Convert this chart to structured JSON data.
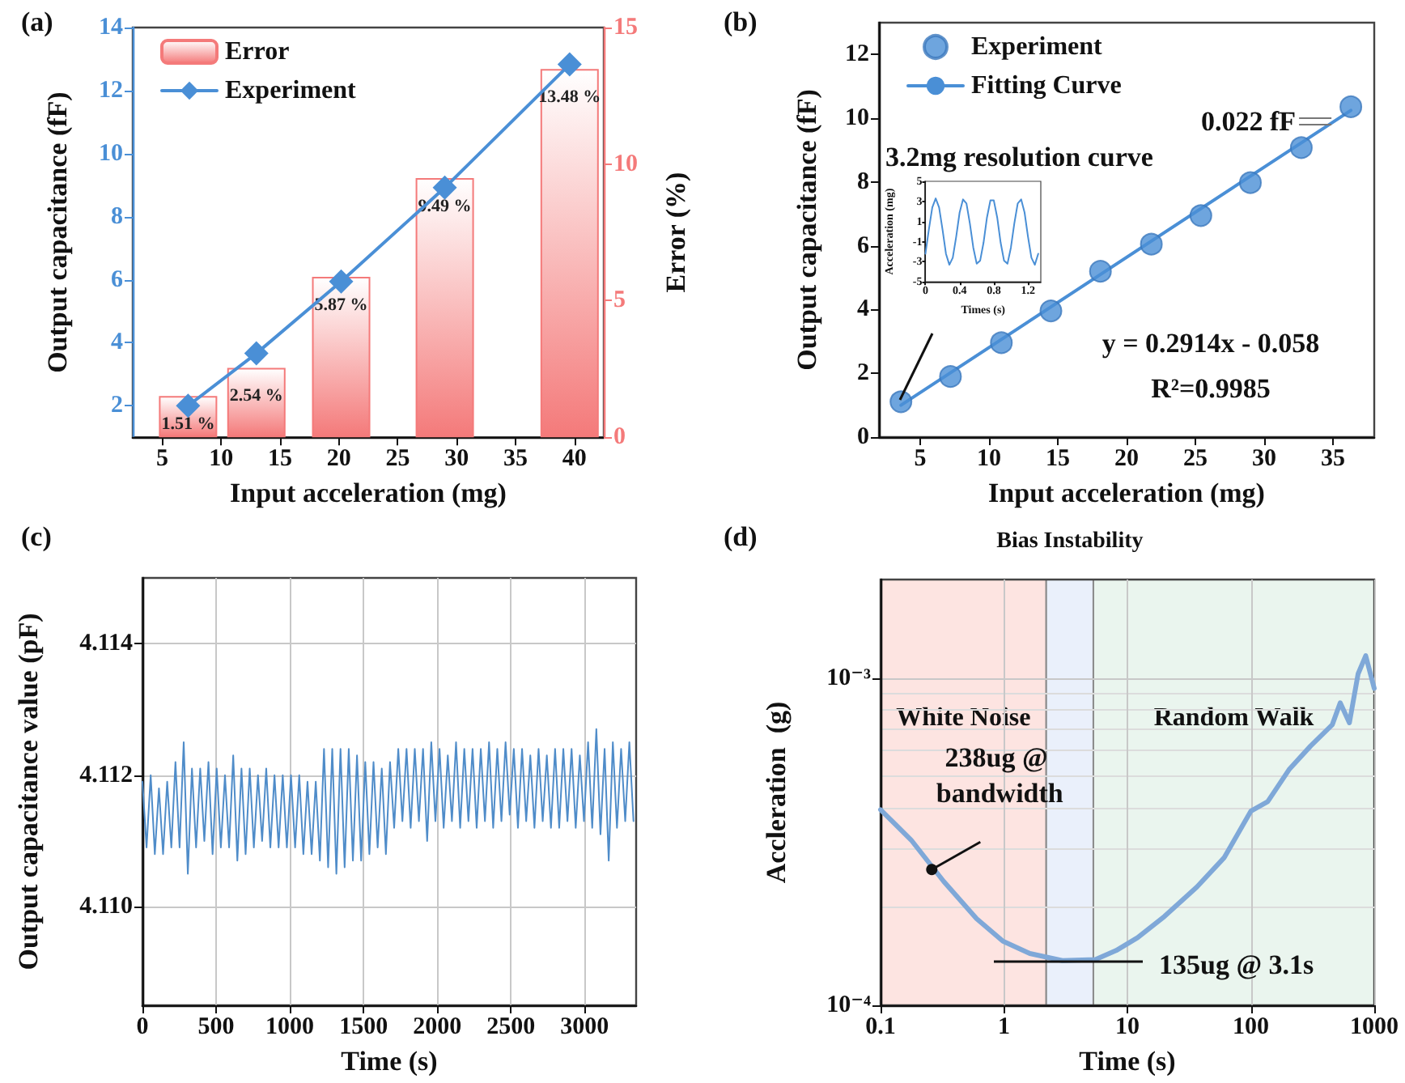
{
  "chart_data": [
    {
      "type": "bar",
      "title": "(a)",
      "xlabel": "Input acceleration (mg)",
      "ylabel": "Output capacitance (fF)",
      "y2label": "Error (%)",
      "xlim": [
        2.5,
        42.5
      ],
      "xticks": [
        5,
        10,
        15,
        20,
        25,
        30,
        35,
        40
      ],
      "ylim": [
        1,
        14
      ],
      "yticks": [
        2,
        4,
        6,
        8,
        10,
        12,
        14
      ],
      "y2lim": [
        0,
        15
      ],
      "y2ticks": [
        0,
        5,
        10,
        15
      ],
      "legend": "top left",
      "grid": false,
      "series": [
        {
          "name": "Error",
          "axis": "y2",
          "color": "#f47a7a",
          "x": [
            7.2,
            13,
            20.2,
            29,
            39.6
          ],
          "values": [
            1.51,
            2.54,
            5.87,
            9.49,
            13.48
          ],
          "value_labels": [
            "1.51 %",
            "2.54 %",
            "5.87 %",
            "9.49 %",
            "13.48 %"
          ]
        },
        {
          "name": "Experiment",
          "type": "line",
          "marker": "diamond",
          "color": "#4a8fd6",
          "x": [
            7.2,
            13,
            20.2,
            29,
            39.6
          ],
          "values": [
            2.0,
            3.66,
            5.94,
            8.92,
            12.83
          ]
        }
      ]
    },
    {
      "type": "scatter",
      "title": "(b)",
      "xlabel": "Input acceleration (mg)",
      "ylabel": "Output capacitance (fF)",
      "xlim": [
        2,
        38
      ],
      "xticks": [
        5,
        10,
        15,
        20,
        25,
        30,
        35
      ],
      "ylim": [
        0,
        13
      ],
      "yticks": [
        0,
        2,
        4,
        6,
        8,
        10,
        12
      ],
      "legend": "top left",
      "grid": false,
      "series": [
        {
          "name": "Experiment",
          "marker": "circle",
          "color": "#4a8fd6",
          "x": [
            3.6,
            7.2,
            10.9,
            14.5,
            18.1,
            21.8,
            25.4,
            29,
            32.7,
            36.3
          ],
          "values": [
            1.11,
            1.9,
            2.96,
            3.96,
            5.2,
            6.05,
            6.95,
            7.98,
            9.08,
            10.36
          ]
        },
        {
          "name": "Fitting Curve",
          "type": "line",
          "marker": "none",
          "color": "#4a8fd6",
          "x": [
            3.6,
            36.3
          ],
          "values": [
            1.0,
            10.25
          ]
        }
      ],
      "annotations": [
        "3.2mg resolution curve",
        {
          "text": "0.022 fF",
          "x": 36.3,
          "y": 10.36
        },
        "y = 0.2914x - 0.058",
        "R²=0.9985"
      ]
    },
    {
      "type": "line",
      "xlabel": "Times (s)",
      "ylabel": "Acceleration (mg)",
      "xlim": [
        0,
        1.35
      ],
      "xticks": [
        0,
        0.4,
        0.8,
        1.2
      ],
      "ylim": [
        -5,
        5
      ],
      "yticks": [
        -5,
        -3,
        -1,
        1,
        3,
        5
      ],
      "grid": false,
      "marker": "none",
      "x": [
        0,
        0.04,
        0.08,
        0.12,
        0.16,
        0.2,
        0.24,
        0.28,
        0.32,
        0.36,
        0.4,
        0.44,
        0.48,
        0.52,
        0.56,
        0.6,
        0.64,
        0.68,
        0.72,
        0.76,
        0.8,
        0.84,
        0.88,
        0.92,
        0.96,
        1.0,
        1.04,
        1.08,
        1.12,
        1.16,
        1.2,
        1.24,
        1.28,
        1.32
      ],
      "series": [
        {
          "color": "#4a8fd6",
          "values": [
            -2.2,
            0.2,
            2.4,
            3.3,
            2.4,
            0.2,
            -2.2,
            -3.3,
            -2.6,
            -0.5,
            1.9,
            3.2,
            2.8,
            0.8,
            -1.6,
            -3.2,
            -2.9,
            -1.1,
            1.4,
            3.1,
            3.1,
            1.4,
            -1.1,
            -2.9,
            -3.2,
            -1.6,
            0.8,
            2.8,
            3.2,
            1.9,
            -0.5,
            -2.6,
            -3.3,
            -2.2
          ]
        }
      ]
    },
    {
      "type": "line",
      "title": "(c)",
      "xlabel": "Time (s)",
      "ylabel": "Output capacitance value (pF)",
      "xlim": [
        0,
        3350
      ],
      "xticks": [
        0,
        500,
        1000,
        1500,
        2000,
        2500,
        3000
      ],
      "ylim": [
        4.1085,
        4.115
      ],
      "yticks": [
        {
          "value": 4.11,
          "label": "4.110"
        },
        {
          "value": 4.112,
          "label": "4.112"
        },
        {
          "value": 4.114,
          "label": "4.114"
        }
      ],
      "grid": true,
      "marker": "none",
      "x": [
        0,
        28,
        56,
        84,
        112,
        140,
        168,
        196,
        224,
        252,
        280,
        308,
        336,
        364,
        392,
        420,
        448,
        476,
        504,
        532,
        560,
        588,
        616,
        644,
        672,
        700,
        728,
        756,
        784,
        812,
        840,
        868,
        896,
        924,
        952,
        980,
        1008,
        1036,
        1064,
        1092,
        1120,
        1148,
        1176,
        1204,
        1232,
        1260,
        1288,
        1316,
        1344,
        1372,
        1400,
        1428,
        1456,
        1484,
        1512,
        1540,
        1568,
        1596,
        1624,
        1652,
        1680,
        1708,
        1736,
        1764,
        1792,
        1820,
        1848,
        1876,
        1904,
        1932,
        1960,
        1988,
        2016,
        2044,
        2072,
        2100,
        2128,
        2156,
        2184,
        2212,
        2240,
        2268,
        2296,
        2324,
        2352,
        2380,
        2408,
        2436,
        2464,
        2492,
        2520,
        2548,
        2576,
        2604,
        2632,
        2660,
        2688,
        2716,
        2744,
        2772,
        2800,
        2828,
        2856,
        2884,
        2912,
        2940,
        2968,
        2996,
        3024,
        3052,
        3080,
        3108,
        3136,
        3164,
        3192,
        3220,
        3248,
        3276,
        3304,
        3332
      ],
      "series": [
        {
          "color": "#4f8cc9",
          "values": [
            4.1119,
            4.1109,
            4.112,
            4.1108,
            4.1118,
            4.1108,
            4.1119,
            4.1109,
            4.1122,
            4.1109,
            4.1125,
            4.1105,
            4.1121,
            4.1109,
            4.1121,
            4.111,
            4.1122,
            4.1108,
            4.1121,
            4.1109,
            4.112,
            4.1109,
            4.1123,
            4.1107,
            4.1121,
            4.1108,
            4.1121,
            4.1109,
            4.112,
            4.111,
            4.1121,
            4.1109,
            4.112,
            4.1109,
            4.112,
            4.1109,
            4.112,
            4.1109,
            4.112,
            4.1108,
            4.1119,
            4.1108,
            4.1119,
            4.1107,
            4.1124,
            4.1106,
            4.1124,
            4.1105,
            4.1124,
            4.1106,
            4.1124,
            4.1107,
            4.1123,
            4.1107,
            4.1122,
            4.1108,
            4.1122,
            4.1109,
            4.1121,
            4.1108,
            4.1122,
            4.1112,
            4.1124,
            4.1113,
            4.1124,
            4.1112,
            4.1124,
            4.1113,
            4.1124,
            4.111,
            4.1125,
            4.1113,
            4.1124,
            4.1112,
            4.1123,
            4.1113,
            4.1125,
            4.1112,
            4.1124,
            4.1113,
            4.1124,
            4.1112,
            4.1124,
            4.1113,
            4.1125,
            4.1112,
            4.1124,
            4.1113,
            4.1125,
            4.1114,
            4.1124,
            4.1112,
            4.1124,
            4.1113,
            4.1123,
            4.1112,
            4.1124,
            4.1113,
            4.1123,
            4.1112,
            4.1124,
            4.1112,
            4.1124,
            4.1113,
            4.1124,
            4.1112,
            4.1123,
            4.1113,
            4.1125,
            4.1112,
            4.1127,
            4.1111,
            4.1124,
            4.1107,
            4.1125,
            4.1112,
            4.1124,
            4.1113,
            4.1125,
            4.1113
          ]
        }
      ]
    },
    {
      "type": "line",
      "title": "(d)",
      "xlabel": "Time (s)",
      "ylabel": "Accleration  (g)",
      "log": "xy",
      "xlim": [
        0.1,
        1000
      ],
      "xticks": [
        0.1,
        1,
        10,
        100,
        1000
      ],
      "ylim": [
        0.0001,
        0.002
      ],
      "yticks": [
        {
          "value": 0.0001,
          "label": "10⁻⁴"
        },
        {
          "value": 0.001,
          "label": "10⁻³"
        }
      ],
      "grid": true,
      "marker": "none",
      "x": [
        0.1,
        0.177,
        0.325,
        0.6,
        0.98,
        1.62,
        2.97,
        5.5,
        8.1,
        12.1,
        20,
        36.6,
        61,
        100,
        137,
        204,
        305,
        457,
        530,
        629,
        740,
        853,
        1000
      ],
      "series": [
        {
          "color": "#7fa8d8",
          "values": [
            0.000396,
            0.00032,
            0.000239,
            0.000184,
            0.000157,
            0.000144,
            0.000137,
            0.000138,
            0.000147,
            0.000161,
            0.000187,
            0.00023,
            0.000283,
            0.000392,
            0.000419,
            0.000525,
            0.00062,
            0.00072,
            0.00084,
            0.00073,
            0.00103,
            0.00117,
            0.00093
          ]
        }
      ],
      "bands": [
        {
          "axis": "x",
          "from": 0.1,
          "to": 2.2,
          "label": "White Noise",
          "color": "#fde4e1"
        },
        {
          "axis": "x",
          "from": 2.2,
          "to": 5.3,
          "label": "Bias Instability",
          "color": "#eaf0fb"
        },
        {
          "axis": "x",
          "from": 5.3,
          "to": 1000,
          "label": "Random Walk",
          "color": "#eaf5ee"
        }
      ],
      "annotations": [
        {
          "text": "238ug @ bandwidth",
          "x": 0.26,
          "y": 0.00026
        },
        "135ug @ 3.1s"
      ]
    }
  ]
}
